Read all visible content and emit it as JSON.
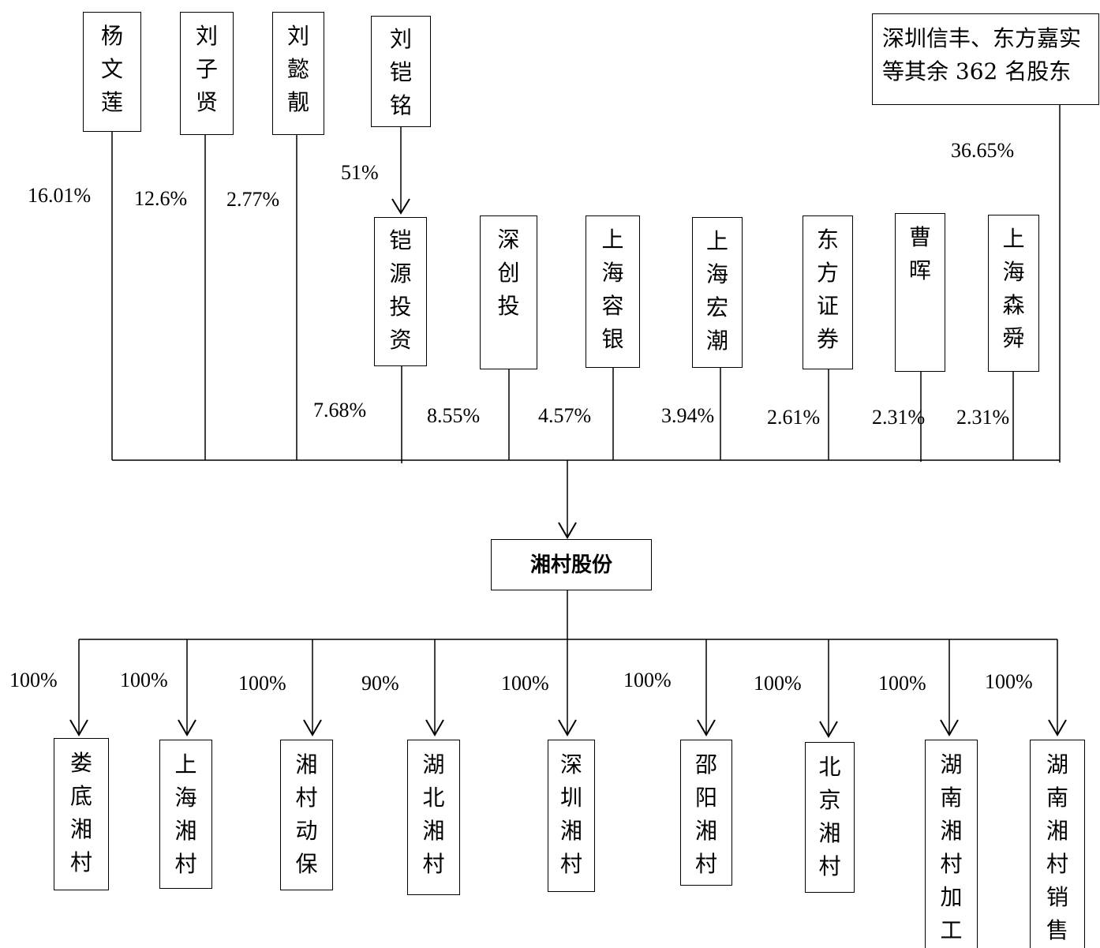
{
  "kaiyuan_controller": {
    "name": "刘铠铭",
    "stake": "51%"
  },
  "individual_shareholders": [
    {
      "name": "杨文莲",
      "stake": "16.01%"
    },
    {
      "name": "刘子贤",
      "stake": "12.6%"
    },
    {
      "name": "刘懿靓",
      "stake": "2.77%"
    }
  ],
  "other_shareholders": {
    "name_lines": [
      "深圳信丰、东方嘉实",
      "等其余 362 名股东"
    ],
    "stake": "36.65%"
  },
  "second_tier_shareholders": [
    {
      "name": "铠源投资",
      "stake": "7.68%"
    },
    {
      "name": "深创投",
      "stake": "8.55%"
    },
    {
      "name": "上海容银",
      "stake": "4.57%"
    },
    {
      "name": "上海宏潮",
      "stake": "3.94%"
    },
    {
      "name": "东方证券",
      "stake": "2.61%"
    },
    {
      "name": "曹晖",
      "stake": "2.31%"
    },
    {
      "name": "上海森舜",
      "stake": "2.31%"
    }
  ],
  "company": {
    "name": "湘村股份"
  },
  "subsidiaries": [
    {
      "name": "娄底湘村",
      "stake": "100%"
    },
    {
      "name": "上海湘村",
      "stake": "100%"
    },
    {
      "name": "湘村动保",
      "stake": "100%"
    },
    {
      "name": "湖北湘村",
      "stake": "90%"
    },
    {
      "name": "深圳湘村",
      "stake": "100%"
    },
    {
      "name": "邵阳湘村",
      "stake": "100%"
    },
    {
      "name": "北京湘村",
      "stake": "100%"
    },
    {
      "name": "湖南湘村加工",
      "stake": "100%"
    },
    {
      "name": "湖南湘村销售",
      "stake": "100%"
    }
  ]
}
